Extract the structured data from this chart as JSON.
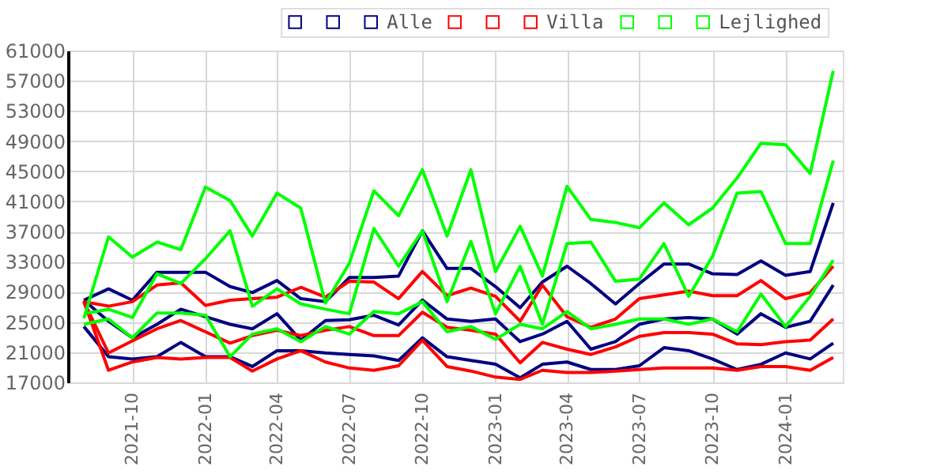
{
  "chart_data": {
    "type": "line",
    "x": [
      "2021-08",
      "2021-09",
      "2021-10",
      "2021-11",
      "2021-12",
      "2022-01",
      "2022-02",
      "2022-03",
      "2022-04",
      "2022-05",
      "2022-06",
      "2022-07",
      "2022-08",
      "2022-09",
      "2022-10",
      "2022-11",
      "2022-12",
      "2023-01",
      "2023-02",
      "2023-03",
      "2023-04",
      "2023-05",
      "2023-06",
      "2023-07",
      "2023-08",
      "2023-09",
      "2023-10",
      "2023-11",
      "2023-12",
      "2024-01",
      "2024-02",
      "2024-03"
    ],
    "series": [
      {
        "color": "#000080",
        "values": [
          24400,
          20400,
          20100,
          20400,
          22300,
          20400,
          20400,
          19100,
          21200,
          21200,
          20900,
          20700,
          20500,
          19900,
          22900,
          20400,
          19900,
          19400,
          17600,
          19400,
          19700,
          18700,
          18700,
          19200,
          21600,
          21200,
          20100,
          18700,
          19400,
          20900,
          20100,
          22200
        ]
      },
      {
        "color": "#000080",
        "values": [
          27900,
          25100,
          22900,
          24700,
          26700,
          25700,
          24700,
          24100,
          26100,
          22600,
          25200,
          25300,
          25900,
          24600,
          27900,
          25400,
          25100,
          25400,
          22400,
          23400,
          25100,
          21400,
          22400,
          24700,
          25400,
          25600,
          25400,
          23400,
          26100,
          24300,
          25100,
          29900
        ]
      },
      {
        "name": "Alle",
        "color": "#000080",
        "values": [
          27900,
          29400,
          27900,
          31600,
          31600,
          31600,
          29700,
          28900,
          30500,
          28100,
          27700,
          30900,
          30900,
          31100,
          37100,
          32100,
          32100,
          29700,
          26900,
          30300,
          32400,
          30100,
          27400,
          30100,
          32700,
          32700,
          31400,
          31300,
          33100,
          31200,
          31700,
          40800
        ]
      },
      {
        "color": "#ff0000",
        "values": [
          27700,
          18600,
          19700,
          20300,
          20100,
          20300,
          20300,
          18500,
          20100,
          21200,
          19700,
          18900,
          18600,
          19200,
          22600,
          19100,
          18500,
          17700,
          17400,
          18600,
          18300,
          18300,
          18500,
          18700,
          18900,
          18900,
          18900,
          18600,
          19100,
          19100,
          18600,
          20300
        ]
      },
      {
        "color": "#ff0000",
        "values": [
          27700,
          20900,
          22500,
          24100,
          25200,
          23700,
          22200,
          23200,
          23900,
          23200,
          23900,
          24400,
          23200,
          23200,
          26300,
          24300,
          23900,
          23400,
          19600,
          22300,
          21400,
          20700,
          21700,
          23100,
          23600,
          23600,
          23400,
          22100,
          22000,
          22400,
          22600,
          25400
        ]
      },
      {
        "name": "Villa",
        "color": "#ff0000",
        "values": [
          27700,
          27100,
          27700,
          29900,
          30200,
          27200,
          27900,
          28100,
          28300,
          29600,
          28300,
          30400,
          30300,
          28100,
          31700,
          28500,
          29500,
          28400,
          25100,
          29900,
          25700,
          24300,
          25400,
          28100,
          28600,
          29100,
          28500,
          28500,
          30500,
          28100,
          28900,
          32400
        ]
      },
      {
        "color": "#00ff00",
        "values": [
          24700,
          25400,
          22900,
          26200,
          26200,
          25900,
          20400,
          23400,
          24100,
          22400,
          24400,
          23400,
          26400,
          26100,
          27700,
          23700,
          24400,
          22700,
          24700,
          24100,
          26400,
          24100,
          24700,
          25400,
          25400,
          24700,
          25400,
          23700,
          28700,
          24400,
          28400,
          33200
        ]
      },
      {
        "color": "#00ff00",
        "values": [
          26100,
          26700,
          25600,
          31400,
          30100,
          33400,
          37100,
          27100,
          29400,
          27400,
          26700,
          26100,
          37400,
          32400,
          37100,
          27700,
          35700,
          26100,
          32400,
          24700,
          35400,
          35600,
          30400,
          30700,
          35400,
          28400,
          33700,
          42100,
          42300,
          35400,
          35400,
          46400
        ]
      },
      {
        "name": "Lejlighed",
        "color": "#00ff00",
        "values": [
          25500,
          36300,
          33600,
          35600,
          34600,
          42900,
          41100,
          36400,
          42100,
          40100,
          27500,
          32800,
          42400,
          39100,
          45200,
          36400,
          45200,
          31700,
          37700,
          31100,
          43000,
          38600,
          38200,
          37500,
          40800,
          37900,
          40100,
          44100,
          48700,
          48500,
          44700,
          58300
        ]
      }
    ],
    "xlim": [
      "2021-07-12",
      "2024-03-13"
    ],
    "xticks": [
      {
        "value": "2021-10",
        "label": "2021-10"
      },
      {
        "value": "2022-01",
        "label": "2022-01"
      },
      {
        "value": "2022-04",
        "label": "2022-04"
      },
      {
        "value": "2022-07",
        "label": "2022-07"
      },
      {
        "value": "2022-10",
        "label": "2022-10"
      },
      {
        "value": "2023-01",
        "label": "2023-01"
      },
      {
        "value": "2023-04",
        "label": "2023-04"
      },
      {
        "value": "2023-07",
        "label": "2023-07"
      },
      {
        "value": "2023-10",
        "label": "2023-10"
      },
      {
        "value": "2024-01",
        "label": "2024-01"
      }
    ],
    "ylim": [
      17000,
      61000
    ],
    "yticks": [
      17000,
      21000,
      25000,
      29000,
      33000,
      37000,
      41000,
      45000,
      49000,
      53000,
      57000,
      61000
    ],
    "grid": true,
    "legend": "top right",
    "marker": "none",
    "line_style": "solid"
  }
}
